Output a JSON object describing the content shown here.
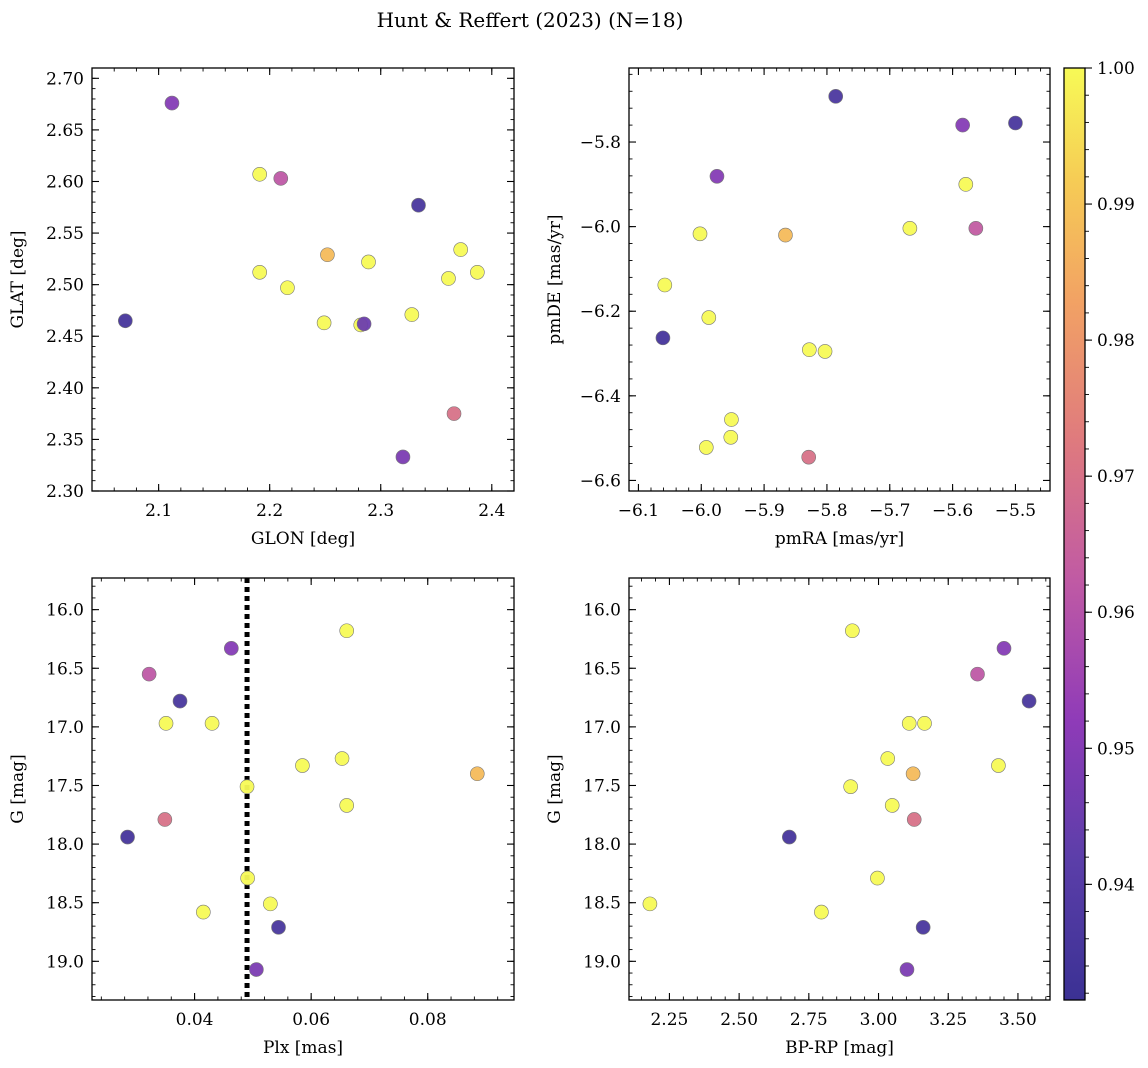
{
  "figure_title": "Hunt & Reffert (2023) (N=18)",
  "colorbar": {
    "min": 0.9315,
    "max": 1.0,
    "ticks": [
      0.94,
      0.95,
      0.96,
      0.97,
      0.98,
      0.99,
      1.0
    ],
    "tick_labels": [
      "0.94",
      "0.95",
      "0.96",
      "0.97",
      "0.98",
      "0.99",
      "1.00"
    ],
    "colormap": "plasma"
  },
  "chart_data": [
    {
      "id": "glon_glat",
      "type": "scatter",
      "xlabel": "GLON [deg]",
      "ylabel": "GLAT [deg]",
      "xlim": [
        2.04,
        2.42
      ],
      "ylim": [
        2.3,
        2.71
      ],
      "y_inverted": false,
      "xticks": [
        2.1,
        2.2,
        2.3,
        2.4
      ],
      "xtick_labels": [
        "2.1",
        "2.2",
        "2.3",
        "2.4"
      ],
      "yticks": [
        2.3,
        2.35,
        2.4,
        2.45,
        2.5,
        2.55,
        2.6,
        2.65,
        2.7
      ],
      "ytick_labels": [
        "2.30",
        "2.35",
        "2.40",
        "2.45",
        "2.50",
        "2.55",
        "2.60",
        "2.65",
        "2.70"
      ],
      "x_minor_step": 0.02,
      "y_minor_step": 0.01,
      "points": [
        {
          "x": 2.112,
          "y": 2.676,
          "c": 0.95
        },
        {
          "x": 2.07,
          "y": 2.465,
          "c": 0.935
        },
        {
          "x": 2.191,
          "y": 2.607,
          "c": 1.0
        },
        {
          "x": 2.21,
          "y": 2.603,
          "c": 0.962
        },
        {
          "x": 2.334,
          "y": 2.577,
          "c": 0.936
        },
        {
          "x": 2.191,
          "y": 2.512,
          "c": 1.0
        },
        {
          "x": 2.216,
          "y": 2.497,
          "c": 1.0
        },
        {
          "x": 2.252,
          "y": 2.529,
          "c": 0.988
        },
        {
          "x": 2.289,
          "y": 2.522,
          "c": 1.0
        },
        {
          "x": 2.249,
          "y": 2.463,
          "c": 1.0
        },
        {
          "x": 2.285,
          "y": 2.462,
          "c": 0.945
        },
        {
          "x": 2.282,
          "y": 2.461,
          "c": 1.0
        },
        {
          "x": 2.328,
          "y": 2.471,
          "c": 1.0
        },
        {
          "x": 2.372,
          "y": 2.534,
          "c": 1.0
        },
        {
          "x": 2.361,
          "y": 2.506,
          "c": 1.0
        },
        {
          "x": 2.387,
          "y": 2.512,
          "c": 1.0
        },
        {
          "x": 2.366,
          "y": 2.375,
          "c": 0.97
        },
        {
          "x": 2.32,
          "y": 2.333,
          "c": 0.948
        }
      ]
    },
    {
      "id": "pm",
      "type": "scatter",
      "xlabel": "pmRA [mas/yr]",
      "ylabel": "pmDE [mas/yr]",
      "xlim": [
        -6.115,
        -5.445
      ],
      "ylim": [
        -6.625,
        -5.625
      ],
      "y_inverted": false,
      "xticks": [
        -6.1,
        -6.0,
        -5.9,
        -5.8,
        -5.7,
        -5.6,
        -5.5
      ],
      "xtick_labels": [
        "−6.1",
        "−6.0",
        "−5.9",
        "−5.8",
        "−5.7",
        "−5.6",
        "−5.5"
      ],
      "yticks": [
        -6.6,
        -6.4,
        -6.2,
        -6.0,
        -5.8
      ],
      "ytick_labels": [
        "−6.6",
        "−6.4",
        "−6.2",
        "−6.0",
        "−5.8"
      ],
      "x_minor_step": 0.02,
      "y_minor_step": 0.04,
      "points": [
        {
          "x": -5.786,
          "y": -5.692,
          "c": 0.937
        },
        {
          "x": -5.584,
          "y": -5.76,
          "c": 0.95
        },
        {
          "x": -5.5,
          "y": -5.755,
          "c": 0.936
        },
        {
          "x": -5.975,
          "y": -5.881,
          "c": 0.95
        },
        {
          "x": -5.579,
          "y": -5.9,
          "c": 1.0
        },
        {
          "x": -6.002,
          "y": -6.017,
          "c": 1.0
        },
        {
          "x": -5.866,
          "y": -6.02,
          "c": 0.988
        },
        {
          "x": -5.668,
          "y": -6.004,
          "c": 1.0
        },
        {
          "x": -5.563,
          "y": -6.004,
          "c": 0.963
        },
        {
          "x": -6.058,
          "y": -6.138,
          "c": 1.0
        },
        {
          "x": -5.988,
          "y": -6.215,
          "c": 1.0
        },
        {
          "x": -6.061,
          "y": -6.263,
          "c": 0.935
        },
        {
          "x": -5.828,
          "y": -6.291,
          "c": 1.0
        },
        {
          "x": -5.803,
          "y": -6.295,
          "c": 1.0
        },
        {
          "x": -5.952,
          "y": -6.456,
          "c": 1.0
        },
        {
          "x": -5.953,
          "y": -6.498,
          "c": 1.0
        },
        {
          "x": -5.992,
          "y": -6.522,
          "c": 1.0
        },
        {
          "x": -5.829,
          "y": -6.545,
          "c": 0.97
        }
      ]
    },
    {
      "id": "plx_g",
      "type": "scatter",
      "xlabel": "Plx [mas]",
      "ylabel": "G [mag]",
      "xlim": [
        0.0224,
        0.0948
      ],
      "ylim": [
        15.73,
        19.33
      ],
      "y_inverted": true,
      "xticks": [
        0.04,
        0.06,
        0.08
      ],
      "xtick_labels": [
        "0.04",
        "0.06",
        "0.08"
      ],
      "yticks": [
        16.0,
        16.5,
        17.0,
        17.5,
        18.0,
        18.5,
        19.0
      ],
      "ytick_labels": [
        "16.0",
        "16.5",
        "17.0",
        "17.5",
        "18.0",
        "18.5",
        "19.0"
      ],
      "x_minor_step": 0.004,
      "y_minor_step": 0.1,
      "vline": {
        "x": 0.049,
        "style": "dotted"
      },
      "points": [
        {
          "x": 0.0661,
          "y": 16.18,
          "c": 1.0
        },
        {
          "x": 0.0463,
          "y": 16.33,
          "c": 0.95
        },
        {
          "x": 0.0322,
          "y": 16.55,
          "c": 0.962
        },
        {
          "x": 0.0375,
          "y": 16.78,
          "c": 0.936
        },
        {
          "x": 0.0351,
          "y": 16.97,
          "c": 1.0
        },
        {
          "x": 0.043,
          "y": 16.97,
          "c": 1.0
        },
        {
          "x": 0.0653,
          "y": 17.27,
          "c": 1.0
        },
        {
          "x": 0.0585,
          "y": 17.33,
          "c": 1.0
        },
        {
          "x": 0.0885,
          "y": 17.4,
          "c": 0.988
        },
        {
          "x": 0.049,
          "y": 17.51,
          "c": 1.0
        },
        {
          "x": 0.0661,
          "y": 17.67,
          "c": 1.0
        },
        {
          "x": 0.0349,
          "y": 17.79,
          "c": 0.97
        },
        {
          "x": 0.0285,
          "y": 17.94,
          "c": 0.935
        },
        {
          "x": 0.0491,
          "y": 18.29,
          "c": 1.0
        },
        {
          "x": 0.053,
          "y": 18.51,
          "c": 1.0
        },
        {
          "x": 0.0415,
          "y": 18.58,
          "c": 1.0
        },
        {
          "x": 0.0544,
          "y": 18.71,
          "c": 0.936
        },
        {
          "x": 0.0506,
          "y": 19.07,
          "c": 0.948
        }
      ]
    },
    {
      "id": "cmd",
      "type": "scatter",
      "xlabel": "BP-RP [mag]",
      "ylabel": "G [mag]",
      "xlim": [
        2.105,
        3.615
      ],
      "ylim": [
        15.73,
        19.33
      ],
      "y_inverted": true,
      "xticks": [
        2.25,
        2.5,
        2.75,
        3.0,
        3.25,
        3.5
      ],
      "xtick_labels": [
        "2.25",
        "2.50",
        "2.75",
        "3.00",
        "3.25",
        "3.50"
      ],
      "yticks": [
        16.0,
        16.5,
        17.0,
        17.5,
        18.0,
        18.5,
        19.0
      ],
      "ytick_labels": [
        "16.0",
        "16.5",
        "17.0",
        "17.5",
        "18.0",
        "18.5",
        "19.0"
      ],
      "x_minor_step": 0.05,
      "y_minor_step": 0.1,
      "points": [
        {
          "x": 2.906,
          "y": 16.18,
          "c": 1.0
        },
        {
          "x": 3.45,
          "y": 16.33,
          "c": 0.95
        },
        {
          "x": 3.355,
          "y": 16.55,
          "c": 0.962
        },
        {
          "x": 3.54,
          "y": 16.78,
          "c": 0.936
        },
        {
          "x": 3.11,
          "y": 16.97,
          "c": 1.0
        },
        {
          "x": 3.165,
          "y": 16.97,
          "c": 1.0
        },
        {
          "x": 3.033,
          "y": 17.27,
          "c": 1.0
        },
        {
          "x": 3.43,
          "y": 17.33,
          "c": 1.0
        },
        {
          "x": 3.124,
          "y": 17.4,
          "c": 0.988
        },
        {
          "x": 2.9,
          "y": 17.51,
          "c": 1.0
        },
        {
          "x": 3.049,
          "y": 17.67,
          "c": 1.0
        },
        {
          "x": 3.128,
          "y": 17.79,
          "c": 0.97
        },
        {
          "x": 2.68,
          "y": 17.94,
          "c": 0.935
        },
        {
          "x": 2.996,
          "y": 18.29,
          "c": 1.0
        },
        {
          "x": 2.18,
          "y": 18.51,
          "c": 1.0
        },
        {
          "x": 2.795,
          "y": 18.58,
          "c": 1.0
        },
        {
          "x": 3.16,
          "y": 18.71,
          "c": 0.936
        },
        {
          "x": 3.102,
          "y": 19.07,
          "c": 0.948
        }
      ]
    }
  ]
}
